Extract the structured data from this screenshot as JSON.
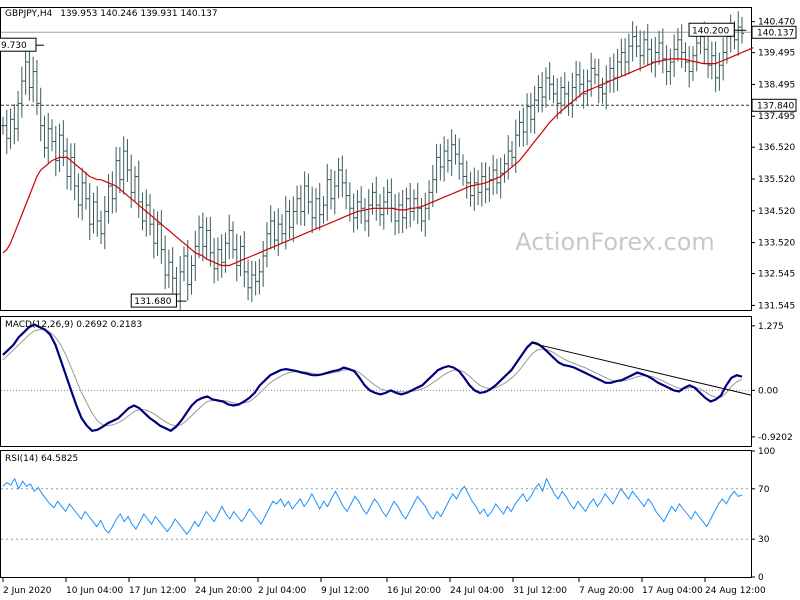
{
  "header": {
    "symbol": "GBPJPY,H4",
    "ohlc": "139.953 140.246 139.931 140.137"
  },
  "watermark": "ActionForex.com",
  "colors": {
    "bar": "#3a5a5a",
    "ma": "#cc0000",
    "macd": "#00007a",
    "signal": "#9a9a9a",
    "rsi": "#1e90ff",
    "trendline": "#000000"
  },
  "chart_data": [
    {
      "type": "ohlc",
      "title": "GBPJPY,H4 139.953 140.246 139.931 140.137",
      "y_ticks": [
        "140.470",
        "139.495",
        "138.495",
        "137.495",
        "136.520",
        "135.520",
        "134.520",
        "133.520",
        "132.545",
        "131.545"
      ],
      "ylim": [
        131.4,
        140.9
      ],
      "price_labels": [
        "140.137",
        "137.840"
      ],
      "annotations": [
        "140.200",
        "131.680",
        "9.730"
      ],
      "horizontal_lines": [
        140.137,
        137.84
      ],
      "legend": "top-left",
      "x_ticks": [
        "2 Jun 2020",
        "10 Jun 04:00",
        "17 Jun 12:00",
        "24 Jun 20:00",
        "2 Jul 04:00",
        "9 Jul 12:00",
        "16 Jul 20:00",
        "24 Jul 04:00",
        "31 Jul 12:00",
        "7 Aug 20:00",
        "17 Aug 04:00",
        "24 Aug 12:00"
      ],
      "series": [
        {
          "values": [
            137.2,
            136.8,
            137.4,
            137.1,
            137.9,
            138.6,
            139.2,
            138.4,
            138.9,
            137.9,
            137.2,
            136.5,
            137.1,
            136.7,
            136.1,
            136.9,
            136.4,
            135.6,
            136.2,
            135.3,
            134.7,
            135.4,
            134.9,
            134.1,
            134.8,
            134.2,
            133.8,
            134.5,
            135.3,
            134.9,
            136.1,
            135.5,
            136.4,
            135.8,
            135.1,
            135.6,
            134.8,
            134.2,
            134.7,
            134.1,
            133.5,
            134.1,
            133.3,
            132.5,
            132.9,
            132.4,
            131.9,
            132.6,
            133.1,
            132.2,
            132.8,
            133.4,
            134.0,
            133.4,
            133.9,
            133.2,
            132.7,
            133.3,
            132.9,
            133.5,
            133.9,
            133.3,
            132.8,
            133.4,
            132.6,
            132.1,
            132.5,
            132.3,
            132.6,
            133.1,
            133.8,
            134.2,
            133.6,
            134.1,
            133.8,
            134.5,
            134.0,
            134.5,
            134.9,
            134.5,
            135.3,
            134.8,
            134.3,
            134.9,
            134.4,
            134.7,
            135.5,
            134.9,
            135.3,
            135.8,
            135.4,
            135.0,
            134.6,
            134.3,
            134.8,
            134.6,
            134.2,
            134.7,
            135.1,
            134.7,
            134.4,
            134.8,
            135.1,
            134.6,
            134.2,
            134.7,
            134.3,
            134.9,
            134.5,
            134.9,
            134.6,
            134.2,
            134.6,
            135.1,
            135.5,
            136.2,
            135.9,
            136.4,
            136.1,
            136.6,
            136.3,
            136.0,
            135.6,
            135.4,
            135.0,
            135.4,
            135.1,
            135.6,
            135.2,
            135.5,
            135.8,
            135.4,
            135.7,
            136.0,
            136.4,
            136.2,
            136.9,
            137.3,
            137.0,
            137.8,
            137.4,
            138.0,
            138.4,
            138.1,
            138.7,
            138.5,
            138.2,
            137.9,
            138.4,
            138.2,
            137.9,
            138.4,
            138.8,
            138.5,
            138.2,
            138.6,
            139.0,
            138.8,
            138.4,
            138.2,
            138.6,
            139.0,
            138.7,
            139.2,
            139.5,
            139.2,
            139.7,
            140.0,
            139.7,
            139.4,
            139.9,
            139.6,
            139.2,
            139.5,
            139.8,
            139.3,
            138.9,
            139.2,
            139.6,
            139.9,
            139.5,
            139.2,
            138.9,
            139.4,
            139.8,
            140.0,
            139.6,
            139.1,
            139.4,
            138.7,
            139.1,
            139.5,
            140.0,
            140.2,
            139.9,
            140.3,
            140.1
          ]
        },
        {
          "name": "MA",
          "values": [
            133.2,
            133.3,
            133.5,
            133.8,
            134.1,
            134.4,
            134.7,
            135.0,
            135.3,
            135.6,
            135.8,
            135.9,
            136.0,
            136.1,
            136.15,
            136.2,
            136.2,
            136.2,
            136.1,
            136.0,
            135.9,
            135.8,
            135.7,
            135.6,
            135.55,
            135.5,
            135.5,
            135.45,
            135.4,
            135.35,
            135.3,
            135.2,
            135.1,
            135.0,
            134.9,
            134.8,
            134.7,
            134.6,
            134.5,
            134.4,
            134.3,
            134.2,
            134.1,
            134.0,
            133.9,
            133.8,
            133.7,
            133.6,
            133.5,
            133.4,
            133.3,
            133.2,
            133.15,
            133.1,
            133.0,
            132.95,
            132.9,
            132.85,
            132.8,
            132.8,
            132.8,
            132.85,
            132.9,
            132.95,
            133.0,
            133.05,
            133.1,
            133.15,
            133.2,
            133.25,
            133.3,
            133.35,
            133.4,
            133.45,
            133.5,
            133.55,
            133.6,
            133.65,
            133.7,
            133.75,
            133.8,
            133.85,
            133.9,
            133.95,
            134.0,
            134.05,
            134.1,
            134.15,
            134.2,
            134.25,
            134.3,
            134.35,
            134.4,
            134.45,
            134.5,
            134.52,
            134.55,
            134.57,
            134.6,
            134.6,
            134.6,
            134.6,
            134.6,
            134.6,
            134.58,
            134.55,
            134.55,
            134.55,
            134.6,
            134.6,
            134.62,
            134.65,
            134.7,
            134.75,
            134.8,
            134.85,
            134.9,
            134.95,
            135.0,
            135.05,
            135.1,
            135.15,
            135.2,
            135.25,
            135.3,
            135.32,
            135.35,
            135.37,
            135.4,
            135.45,
            135.5,
            135.55,
            135.6,
            135.7,
            135.8,
            135.9,
            136.0,
            136.1,
            136.25,
            136.4,
            136.55,
            136.7,
            136.85,
            137.0,
            137.15,
            137.3,
            137.42,
            137.55,
            137.65,
            137.75,
            137.85,
            137.95,
            138.05,
            138.15,
            138.25,
            138.3,
            138.35,
            138.4,
            138.45,
            138.5,
            138.55,
            138.6,
            138.65,
            138.7,
            138.75,
            138.8,
            138.85,
            138.9,
            138.95,
            139.0,
            139.05,
            139.1,
            139.15,
            139.2,
            139.22,
            139.25,
            139.27,
            139.3,
            139.3,
            139.3,
            139.3,
            139.28,
            139.25,
            139.22,
            139.2,
            139.17,
            139.15,
            139.15,
            139.15,
            139.15,
            139.2,
            139.25,
            139.3,
            139.35,
            139.4,
            139.45,
            139.5,
            139.55,
            139.6,
            139.65
          ]
        }
      ]
    },
    {
      "type": "line",
      "title": "MACD(12,26,9) 0.2692 0.2183",
      "y_ticks": [
        "1.275",
        "0.00",
        "-0.9202"
      ],
      "ylim": [
        -1.1,
        1.45
      ],
      "series": [
        {
          "values": [
            0.7,
            0.8,
            0.9,
            1.05,
            1.15,
            1.25,
            1.3,
            1.25,
            1.2,
            1.1,
            0.9,
            0.6,
            0.3,
            0.0,
            -0.3,
            -0.55,
            -0.7,
            -0.8,
            -0.78,
            -0.72,
            -0.65,
            -0.6,
            -0.55,
            -0.45,
            -0.35,
            -0.3,
            -0.35,
            -0.45,
            -0.55,
            -0.62,
            -0.7,
            -0.75,
            -0.8,
            -0.72,
            -0.6,
            -0.45,
            -0.3,
            -0.2,
            -0.15,
            -0.12,
            -0.18,
            -0.2,
            -0.22,
            -0.28,
            -0.3,
            -0.28,
            -0.22,
            -0.15,
            -0.05,
            0.1,
            0.2,
            0.3,
            0.35,
            0.4,
            0.42,
            0.4,
            0.38,
            0.35,
            0.33,
            0.3,
            0.3,
            0.32,
            0.35,
            0.38,
            0.4,
            0.45,
            0.42,
            0.38,
            0.25,
            0.1,
            0.0,
            -0.05,
            -0.08,
            -0.05,
            0.0,
            -0.05,
            -0.08,
            -0.05,
            0.0,
            0.05,
            0.1,
            0.2,
            0.3,
            0.4,
            0.45,
            0.48,
            0.45,
            0.38,
            0.25,
            0.1,
            0.0,
            -0.05,
            -0.03,
            0.02,
            0.1,
            0.2,
            0.3,
            0.4,
            0.55,
            0.7,
            0.85,
            0.95,
            0.92,
            0.85,
            0.75,
            0.65,
            0.55,
            0.5,
            0.48,
            0.45,
            0.4,
            0.35,
            0.3,
            0.25,
            0.2,
            0.15,
            0.15,
            0.18,
            0.2,
            0.25,
            0.3,
            0.35,
            0.32,
            0.28,
            0.22,
            0.15,
            0.1,
            0.05,
            0.0,
            -0.02,
            0.05,
            0.1,
            0.05,
            -0.05,
            -0.15,
            -0.22,
            -0.18,
            -0.1,
            0.1,
            0.25,
            0.3,
            0.27
          ]
        },
        {
          "values": [
            0.6,
            0.7,
            0.8,
            0.9,
            1.0,
            1.1,
            1.18,
            1.2,
            1.2,
            1.15,
            1.05,
            0.9,
            0.7,
            0.45,
            0.2,
            -0.05,
            -0.25,
            -0.45,
            -0.6,
            -0.68,
            -0.7,
            -0.68,
            -0.64,
            -0.58,
            -0.5,
            -0.42,
            -0.38,
            -0.38,
            -0.42,
            -0.48,
            -0.55,
            -0.62,
            -0.68,
            -0.7,
            -0.68,
            -0.6,
            -0.5,
            -0.4,
            -0.3,
            -0.22,
            -0.2,
            -0.2,
            -0.2,
            -0.22,
            -0.25,
            -0.26,
            -0.25,
            -0.22,
            -0.15,
            -0.05,
            0.05,
            0.15,
            0.22,
            0.28,
            0.33,
            0.36,
            0.37,
            0.37,
            0.36,
            0.34,
            0.32,
            0.32,
            0.33,
            0.35,
            0.37,
            0.4,
            0.41,
            0.4,
            0.35,
            0.27,
            0.18,
            0.1,
            0.03,
            0.0,
            -0.01,
            -0.02,
            -0.03,
            -0.03,
            -0.02,
            0.0,
            0.03,
            0.08,
            0.15,
            0.22,
            0.3,
            0.36,
            0.4,
            0.4,
            0.36,
            0.28,
            0.18,
            0.1,
            0.05,
            0.03,
            0.05,
            0.1,
            0.16,
            0.24,
            0.34,
            0.46,
            0.6,
            0.73,
            0.8,
            0.82,
            0.8,
            0.75,
            0.68,
            0.62,
            0.57,
            0.53,
            0.49,
            0.45,
            0.4,
            0.35,
            0.3,
            0.25,
            0.2,
            0.18,
            0.18,
            0.2,
            0.23,
            0.27,
            0.29,
            0.29,
            0.27,
            0.23,
            0.18,
            0.13,
            0.08,
            0.04,
            0.03,
            0.05,
            0.06,
            0.03,
            -0.03,
            -0.1,
            -0.14,
            -0.14,
            -0.05,
            0.08,
            0.17,
            0.22
          ]
        }
      ],
      "trendline_y": [
        0.93,
        -0.1
      ]
    },
    {
      "type": "line",
      "title": "RSI(14) 64.5825",
      "y_ticks": [
        "100",
        "70",
        "30",
        "0"
      ],
      "ylim": [
        0,
        100
      ],
      "levels": [
        70,
        30
      ],
      "series": [
        {
          "values": [
            72,
            75,
            73,
            78,
            70,
            76,
            72,
            74,
            68,
            71,
            66,
            62,
            58,
            55,
            60,
            56,
            52,
            58,
            54,
            50,
            46,
            52,
            48,
            44,
            40,
            45,
            38,
            35,
            40,
            46,
            50,
            44,
            48,
            42,
            38,
            44,
            50,
            46,
            42,
            48,
            44,
            40,
            36,
            40,
            46,
            42,
            38,
            34,
            38,
            44,
            40,
            46,
            52,
            48,
            44,
            50,
            56,
            50,
            46,
            52,
            48,
            44,
            48,
            54,
            50,
            46,
            42,
            48,
            54,
            60,
            58,
            62,
            56,
            60,
            54,
            58,
            62,
            56,
            60,
            66,
            60,
            54,
            60,
            56,
            62,
            68,
            62,
            56,
            52,
            58,
            64,
            60,
            54,
            50,
            56,
            62,
            58,
            52,
            48,
            54,
            60,
            56,
            50,
            46,
            52,
            58,
            64,
            60,
            56,
            50,
            46,
            52,
            48,
            54,
            60,
            66,
            62,
            68,
            72,
            66,
            60,
            56,
            50,
            54,
            48,
            52,
            58,
            54,
            50,
            56,
            52,
            58,
            62,
            66,
            60,
            64,
            70,
            74,
            68,
            78,
            72,
            66,
            62,
            68,
            64,
            58,
            54,
            60,
            56,
            52,
            58,
            62,
            56,
            60,
            66,
            62,
            58,
            64,
            70,
            66,
            62,
            68,
            64,
            60,
            56,
            62,
            58,
            52,
            48,
            44,
            50,
            56,
            52,
            58,
            54,
            50,
            46,
            52,
            48,
            44,
            40,
            46,
            52,
            58,
            62,
            58,
            64,
            68,
            64,
            65
          ]
        }
      ]
    }
  ]
}
